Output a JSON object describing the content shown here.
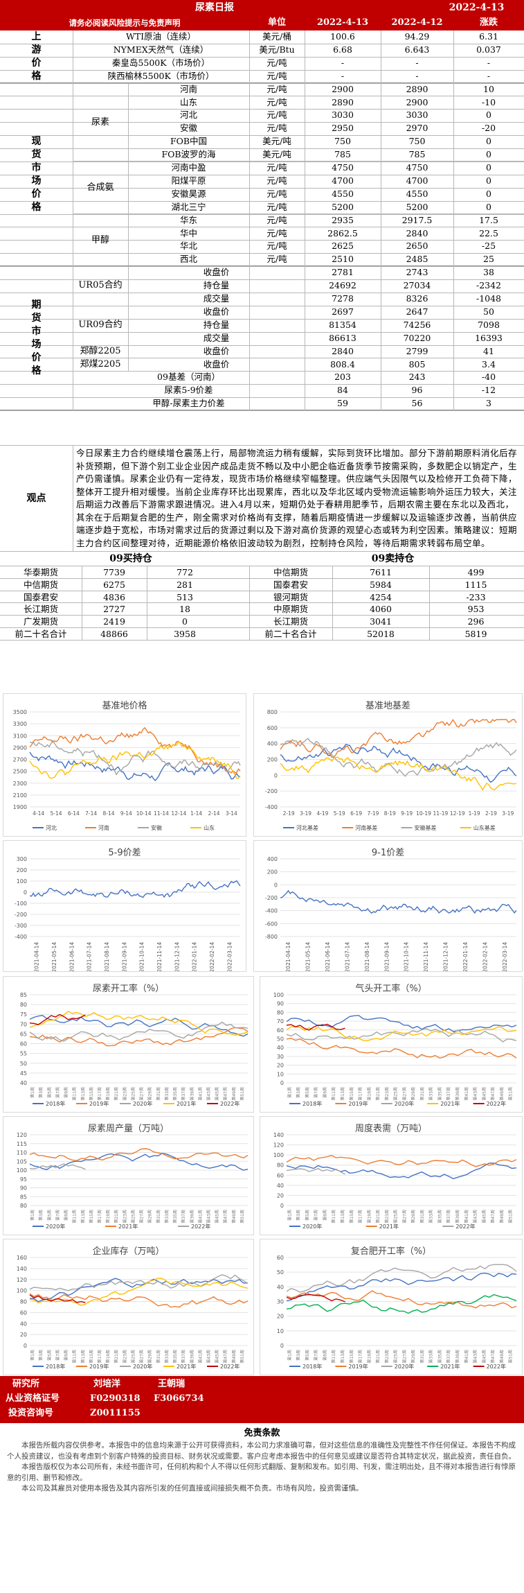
{
  "header": {
    "title": "尿素日报",
    "date": "2022-4-13"
  },
  "subheader": {
    "warning": "请务必阅读风险提示与免责声明",
    "unit": "单位",
    "d1": "2022-4-13",
    "d2": "2022-4-12",
    "change": "涨跌"
  },
  "sections": {
    "upstream": "上\n游\n价\n格",
    "spot": "现\n货\n市\n场\n价\n格",
    "futures": "期\n货\n市\n场\n价\n格"
  },
  "upstream_rows": [
    {
      "name": "WTI原油（连续）",
      "unit": "美元/桶",
      "v1": "100.6",
      "v2": "94.29",
      "chg": "6.31"
    },
    {
      "name": "NYMEX天然气（连续）",
      "unit": "美元/Btu",
      "v1": "6.68",
      "v2": "6.643",
      "chg": "0.037"
    },
    {
      "name": "秦皇岛5500K（市场价）",
      "unit": "元/吨",
      "v1": "-",
      "v2": "-",
      "chg": "-"
    },
    {
      "name": "陕西榆林5500K（市场价）",
      "unit": "元/吨",
      "v1": "-",
      "v2": "-",
      "chg": "-"
    }
  ],
  "spot_groups": [
    {
      "group": "尿素",
      "rows": [
        {
          "name": "河南",
          "unit": "元/吨",
          "v1": "2900",
          "v2": "2890",
          "chg": "10"
        },
        {
          "name": "山东",
          "unit": "元/吨",
          "v1": "2890",
          "v2": "2900",
          "chg": "-10"
        },
        {
          "name": "河北",
          "unit": "元/吨",
          "v1": "3030",
          "v2": "3030",
          "chg": "0"
        },
        {
          "name": "安徽",
          "unit": "元/吨",
          "v1": "2950",
          "v2": "2970",
          "chg": "-20"
        },
        {
          "name": "FOB中国",
          "unit": "美元/吨",
          "v1": "750",
          "v2": "750",
          "chg": "0"
        },
        {
          "name": "FOB波罗的海",
          "unit": "美元/吨",
          "v1": "785",
          "v2": "785",
          "chg": "0"
        }
      ]
    },
    {
      "group": "合成氨",
      "rows": [
        {
          "name": "河南中盈",
          "unit": "元/吨",
          "v1": "4750",
          "v2": "4750",
          "chg": "0"
        },
        {
          "name": "阳煤平原",
          "unit": "元/吨",
          "v1": "4700",
          "v2": "4700",
          "chg": "0"
        },
        {
          "name": "安徽昊源",
          "unit": "元/吨",
          "v1": "4550",
          "v2": "4550",
          "chg": "0"
        },
        {
          "name": "湖北三宁",
          "unit": "元/吨",
          "v1": "5200",
          "v2": "5200",
          "chg": "0"
        }
      ]
    },
    {
      "group": "甲醇",
      "rows": [
        {
          "name": "华东",
          "unit": "元/吨",
          "v1": "2935",
          "v2": "2917.5",
          "chg": "17.5"
        },
        {
          "name": "华中",
          "unit": "元/吨",
          "v1": "2862.5",
          "v2": "2840",
          "chg": "22.5"
        },
        {
          "name": "华北",
          "unit": "元/吨",
          "v1": "2625",
          "v2": "2650",
          "chg": "-25"
        },
        {
          "name": "西北",
          "unit": "元/吨",
          "v1": "2510",
          "v2": "2485",
          "chg": "25"
        }
      ]
    }
  ],
  "futures_groups": [
    {
      "group": "UR05合约",
      "rows": [
        {
          "name": "收盘价",
          "v1": "2781",
          "v2": "2743",
          "chg": "38"
        },
        {
          "name": "持仓量",
          "v1": "24692",
          "v2": "27034",
          "chg": "-2342"
        },
        {
          "name": "成交量",
          "v1": "7278",
          "v2": "8326",
          "chg": "-1048"
        }
      ]
    },
    {
      "group": "UR09合约",
      "rows": [
        {
          "name": "收盘价",
          "v1": "2697",
          "v2": "2647",
          "chg": "50"
        },
        {
          "name": "持仓量",
          "v1": "81354",
          "v2": "74256",
          "chg": "7098"
        },
        {
          "name": "成交量",
          "v1": "86613",
          "v2": "70220",
          "chg": "16393"
        }
      ]
    },
    {
      "group": "郑醇2205",
      "rows": [
        {
          "name": "收盘价",
          "v1": "2840",
          "v2": "2799",
          "chg": "41"
        }
      ]
    },
    {
      "group": "郑煤2205",
      "rows": [
        {
          "name": "收盘价",
          "v1": "808.4",
          "v2": "805",
          "chg": "3.4"
        }
      ]
    }
  ],
  "spread_rows": [
    {
      "name": "09基差（河南）",
      "v1": "203",
      "v2": "243",
      "chg": "-40"
    },
    {
      "name": "尿素5-9价差",
      "v1": "84",
      "v2": "96",
      "chg": "-12"
    },
    {
      "name": "甲醇-尿素主力价差",
      "v1": "59",
      "v2": "56",
      "chg": "3"
    }
  ],
  "viewpoint": {
    "label": "观点",
    "text": "今日尿素主力合约继续增仓震荡上行，局部物流运力稍有缓解，实际到货环比增加。部分下游前期原料消化后存补货预期，但下游个别工业企业因产成品走货不畅以及中小肥企临近备货季节按需采购，多数肥企以销定产，生产仍需谨慎。尿素企业仍有一定待发，现货市场价格继续窄幅整理。供应端气头因限气以及检修开工负荷下降，整体开工提升相对缓慢。当前企业库存环比出现累库，西北以及华北区域内受物流运输影响外运压力较大，关注后期运力改善后下游需求跟进情况。进入4月以来，短期仍处于春耕用肥季节，后期农需主要在东北以及西北，其余在于后期复合肥的生产，刚全需求对价格尚有支撑，随着后期疫情进一步缓解以及运输逐步改善，当前供应端逐步趋于宽松，市场对需求过后的货源过剩以及下游对高价货源的观望心态或转为利空因素。策略建议：短期主力合约区间整理对待，近期能源价格依旧波动较为剧烈，控制持仓风险，等待后期需求转弱布局空单。"
  },
  "positions": {
    "buy_title": "09买持仓",
    "sell_title": "09卖持仓",
    "buy_rows": [
      {
        "name": "华泰期货",
        "v": "7739",
        "chg": "772"
      },
      {
        "name": "中信期货",
        "v": "6275",
        "chg": "281"
      },
      {
        "name": "国泰君安",
        "v": "4836",
        "chg": "513"
      },
      {
        "name": "长江期货",
        "v": "2727",
        "chg": "18"
      },
      {
        "name": "广发期货",
        "v": "2419",
        "chg": "0"
      },
      {
        "name": "前二十名合计",
        "v": "48866",
        "chg": "3958"
      }
    ],
    "sell_rows": [
      {
        "name": "中信期货",
        "v": "7611",
        "chg": "499"
      },
      {
        "name": "国泰君安",
        "v": "5984",
        "chg": "1115"
      },
      {
        "name": "银河期货",
        "v": "4254",
        "chg": "-233"
      },
      {
        "name": "中原期货",
        "v": "4060",
        "chg": "953"
      },
      {
        "name": "长江期货",
        "v": "3041",
        "chg": "296"
      },
      {
        "name": "前二十名合计",
        "v": "52018",
        "chg": "5819"
      }
    ]
  },
  "chart_data": [
    {
      "type": "line",
      "title": "基准地价格",
      "x_ticks": [
        "4-14",
        "5-14",
        "6-14",
        "7-14",
        "8-14",
        "9-14",
        "10-14",
        "11-14",
        "12-14",
        "1-14",
        "2-14",
        "3-14"
      ],
      "ylim": [
        1900,
        3500
      ],
      "y_ticks": [
        1900,
        2100,
        2300,
        2500,
        2700,
        2900,
        3100,
        3300,
        3500
      ],
      "series": [
        {
          "name": "河北",
          "color": "#4472c4"
        },
        {
          "name": "河南",
          "color": "#ed7d31"
        },
        {
          "name": "安徽",
          "color": "#a5a5a5"
        },
        {
          "name": "山东",
          "color": "#ffc000"
        }
      ]
    },
    {
      "type": "line",
      "title": "基准地基差",
      "x_ticks": [
        "2-19",
        "3-19",
        "4-19",
        "5-19",
        "6-19",
        "7-19",
        "8-19",
        "9-19",
        "10-19",
        "11-19",
        "12-19",
        "1-19",
        "2-19",
        "3-19"
      ],
      "ylim": [
        -400,
        800
      ],
      "y_ticks": [
        -400,
        -200,
        0,
        200,
        400,
        600,
        800
      ],
      "series": [
        {
          "name": "河北基差",
          "color": "#4472c4"
        },
        {
          "name": "河南基差",
          "color": "#ed7d31"
        },
        {
          "name": "安徽基差",
          "color": "#a5a5a5"
        },
        {
          "name": "山东基差",
          "color": "#ffc000"
        }
      ]
    },
    {
      "type": "line",
      "title": "5-9价差",
      "ylim": [
        -400,
        300
      ],
      "y_ticks": [
        -400,
        -300,
        -200,
        -100,
        0,
        100,
        200,
        300
      ],
      "x_ticks": [
        "2021-04-14",
        "2021-05-14",
        "2021-06-14",
        "2021-07-14",
        "2021-08-14",
        "2021-09-14",
        "2021-10-14",
        "2021-11-14",
        "2021-12-14",
        "2022-01-14",
        "2022-02-14",
        "2022-03-14"
      ]
    },
    {
      "type": "line",
      "title": "9-1价差",
      "ylim": [
        -800,
        400
      ],
      "y_ticks": [
        -800,
        -600,
        -400,
        -200,
        0,
        200,
        400
      ],
      "x_ticks": [
        "2021-04-14",
        "2021-05-14",
        "2021-06-14",
        "2021-07-14",
        "2021-08-14",
        "2021-09-14",
        "2021-10-14",
        "2021-11-14",
        "2021-12-14",
        "2022-01-14",
        "2022-02-14",
        "2022-03-14"
      ]
    },
    {
      "type": "line",
      "title": "尿素开工率（%）",
      "ylim": [
        40,
        85
      ],
      "y_ticks": [
        40,
        45,
        50,
        55,
        60,
        65,
        70,
        75,
        80,
        85
      ],
      "series": [
        {
          "name": "2018年",
          "color": "#4472c4"
        },
        {
          "name": "2019年",
          "color": "#ed7d31"
        },
        {
          "name": "2020年",
          "color": "#a5a5a5"
        },
        {
          "name": "2021年",
          "color": "#ffc000"
        },
        {
          "name": "2022年",
          "color": "#c00000"
        }
      ]
    },
    {
      "type": "line",
      "title": "气头开工率（%）",
      "ylim": [
        0,
        100
      ],
      "y_ticks": [
        0,
        10,
        20,
        30,
        40,
        50,
        60,
        70,
        80,
        90,
        100
      ],
      "series": [
        {
          "name": "2018年",
          "color": "#4472c4"
        },
        {
          "name": "2019年",
          "color": "#ed7d31"
        },
        {
          "name": "2020年",
          "color": "#a5a5a5"
        },
        {
          "name": "2021年",
          "color": "#ffc000"
        },
        {
          "name": "2022年",
          "color": "#c00000"
        }
      ]
    },
    {
      "type": "line",
      "title": "尿素周产量（万吨）",
      "ylim": [
        80,
        120
      ],
      "y_ticks": [
        80,
        85,
        90,
        95,
        100,
        105,
        110,
        115,
        120
      ],
      "series": [
        {
          "name": "2020年",
          "color": "#4472c4"
        },
        {
          "name": "2021年",
          "color": "#ed7d31"
        },
        {
          "name": "2022年",
          "color": "#a5a5a5"
        }
      ]
    },
    {
      "type": "line",
      "title": "周度表需（万吨）",
      "ylim": [
        0,
        140
      ],
      "y_ticks": [
        0,
        20,
        40,
        60,
        80,
        100,
        120,
        140
      ],
      "series": [
        {
          "name": "2020年",
          "color": "#4472c4"
        },
        {
          "name": "2021年",
          "color": "#ed7d31"
        },
        {
          "name": "2022年",
          "color": "#a5a5a5"
        }
      ]
    },
    {
      "type": "line",
      "title": "企业库存（万吨）",
      "ylim": [
        0,
        160
      ],
      "y_ticks": [
        0,
        20,
        40,
        60,
        80,
        100,
        120,
        140,
        160
      ],
      "series": [
        {
          "name": "2018年",
          "color": "#4472c4"
        },
        {
          "name": "2019年",
          "color": "#ed7d31"
        },
        {
          "name": "2020年",
          "color": "#a5a5a5"
        },
        {
          "name": "2021年",
          "color": "#ffc000"
        },
        {
          "name": "2022年",
          "color": "#c00000"
        }
      ]
    },
    {
      "type": "line",
      "title": "复合肥开工率（%）",
      "ylim": [
        0,
        60
      ],
      "y_ticks": [
        0,
        10,
        20,
        30,
        40,
        50,
        60
      ],
      "series": [
        {
          "name": "2018年",
          "color": "#4472c4"
        },
        {
          "name": "2019年",
          "color": "#ed7d31"
        },
        {
          "name": "2020年",
          "color": "#a5a5a5"
        },
        {
          "name": "2021年",
          "color": "#00b050"
        },
        {
          "name": "2022年",
          "color": "#c00000"
        }
      ]
    }
  ],
  "footer": {
    "research": "研究所",
    "analyst1": "刘培洋",
    "analyst2": "王朝瑞",
    "cert_label": "从业资格证号",
    "cert1": "F0290318",
    "cert2": "F3066734",
    "inv_label": "投资咨询号",
    "inv1": "Z0011155"
  },
  "disclaimer": {
    "title": "免责条款",
    "p1": "本报告所载内容仅供参考。本报告中的信息均来源于公开可获得资料，本公司力求准确可靠，但对这些信息的准确性及完整性不作任何保证。本报告不构成个人投资建议，也没有考虑到个别客户特殊的投资目标、财务状况或需要。客户应考虑本报告中的任何意见或建议是否符合其特定状况，据此投资，责任自负。",
    "p2": "本报告版权仅为本公司所有，未经书面许可，任何机构和个人不得以任何形式翻版、复制和发布。如引用、刊发，需注明出处，且不得对本报告进行有悖原意的引用、删节和修改。",
    "p3": "本公司及其雇员对使用本报告及其内容所引发的任何直接或间接损失概不负责。市场有风险，投资需谨慎。"
  }
}
